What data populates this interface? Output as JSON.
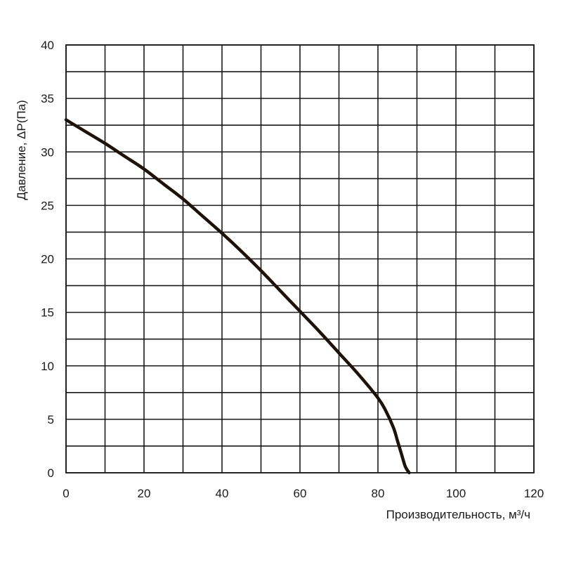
{
  "chart_data": {
    "type": "line",
    "title": "",
    "xlabel": "Производительность, м³/ч",
    "ylabel": "Давление, ΔP(Па)",
    "xlim": [
      0,
      120
    ],
    "ylim": [
      0,
      40
    ],
    "x_major_ticks": [
      0,
      20,
      40,
      60,
      80,
      100,
      120
    ],
    "x_minor_step": 10,
    "y_major_ticks": [
      0,
      5,
      10,
      15,
      20,
      25,
      30,
      35,
      40
    ],
    "y_minor_step": 2.5,
    "grid": true,
    "legend": "none",
    "line_color": "#1c1208",
    "series": [
      {
        "x": [
          0,
          5,
          10,
          15,
          20,
          25,
          30,
          35,
          40,
          45,
          50,
          55,
          60,
          65,
          70,
          75,
          80,
          82,
          84,
          85,
          86,
          87,
          88
        ],
        "y": [
          33,
          31.9,
          30.8,
          29.6,
          28.4,
          27.0,
          25.6,
          24.0,
          22.4,
          20.7,
          18.9,
          17.0,
          15.1,
          13.2,
          11.2,
          9.2,
          7.0,
          5.8,
          4.2,
          3.0,
          1.8,
          0.6,
          0
        ]
      }
    ]
  }
}
